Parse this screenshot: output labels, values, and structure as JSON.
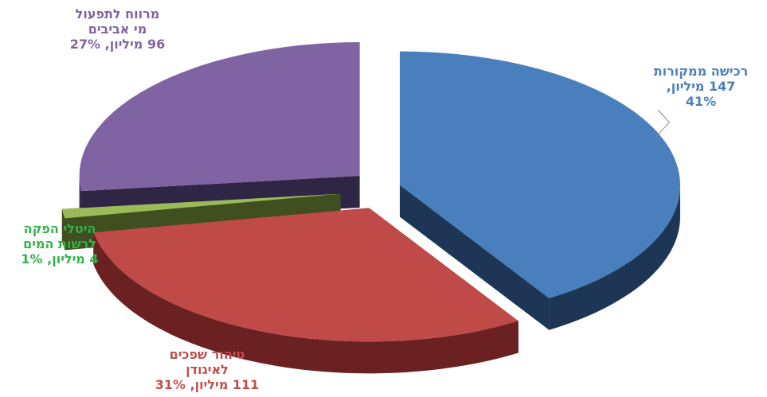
{
  "chart_data": {
    "type": "pie",
    "style": "3d-exploded",
    "slices": [
      {
        "lines": [
          "רכישה ממקורות",
          "147 מיליון,",
          "41%"
        ],
        "value": 147,
        "percent": 41,
        "color": "#4a7fbd",
        "side_color": "#1d3655",
        "label_color": "#4a7fbd"
      },
      {
        "lines": [
          "טיהור שפכים",
          "לאיגודן",
          "111 מיליון, 31%"
        ],
        "value": 111,
        "percent": 31,
        "color": "#bf4a47",
        "side_color": "#6b2021",
        "label_color": "#c0504d"
      },
      {
        "lines": [
          "היטלי הפקה",
          "לרשות המים",
          "4 מיליון, 1%"
        ],
        "value": 4,
        "percent": 1,
        "color": "#9bbb59",
        "side_color": "#3f4f1f",
        "label_color": "#33b24a"
      },
      {
        "lines": [
          "מרווח לתפעול",
          "מי אביבים",
          "96 מיליון, 27%"
        ],
        "value": 96,
        "percent": 27,
        "color": "#7f63a2",
        "side_color": "#2f2545",
        "label_color": "#8064a2"
      }
    ]
  }
}
